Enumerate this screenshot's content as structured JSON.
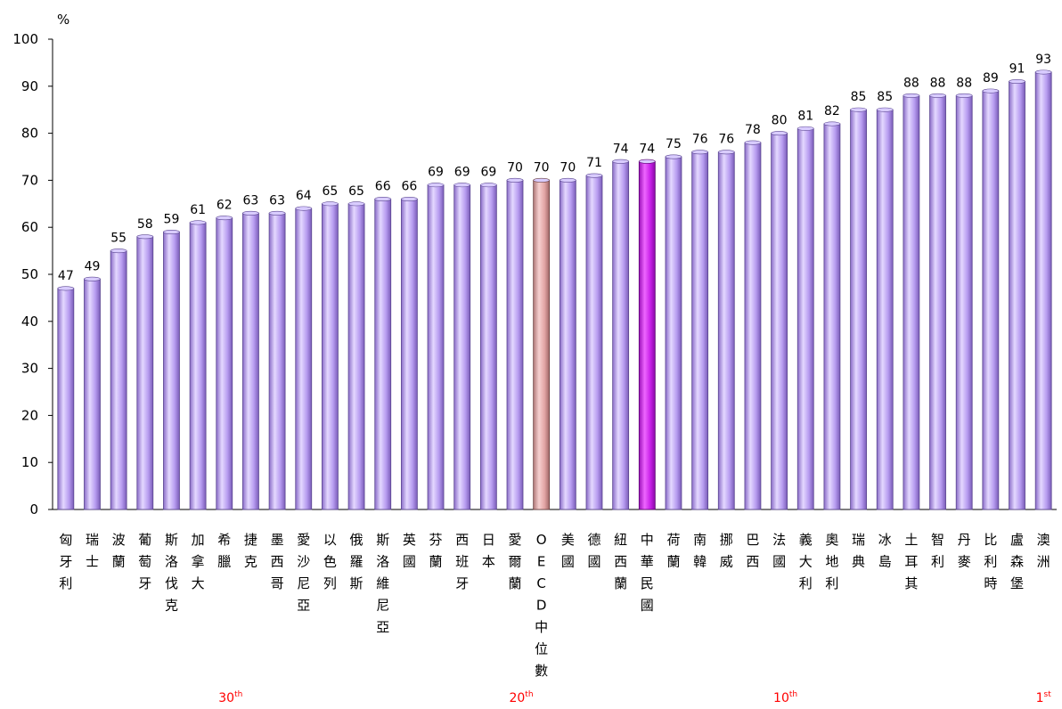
{
  "chart_data": {
    "type": "bar",
    "ylabel": "%",
    "ylim": [
      0,
      100
    ],
    "yticks": [
      0,
      10,
      20,
      30,
      40,
      50,
      60,
      70,
      80,
      90,
      100
    ],
    "grid": false,
    "legend": "none",
    "categories": [
      "匈牙利",
      "瑞士",
      "波蘭",
      "葡萄牙",
      "斯洛伐克",
      "加拿大",
      "希臘",
      "捷克",
      "墨西哥",
      "愛沙尼亞",
      "以色列",
      "俄羅斯",
      "斯洛維尼亞",
      "英國",
      "芬蘭",
      "西班牙",
      "日本",
      "愛爾蘭",
      "OECD中位數",
      "美國",
      "德國",
      "紐西蘭",
      "中華民國",
      "荷蘭",
      "南韓",
      "挪威",
      "巴西",
      "法國",
      "義大利",
      "奧地利",
      "瑞典",
      "冰島",
      "土耳其",
      "智利",
      "丹麥",
      "比利時",
      "盧森堡",
      "澳洲"
    ],
    "values": [
      47,
      49,
      55,
      58,
      59,
      61,
      62,
      63,
      63,
      64,
      65,
      65,
      66,
      66,
      69,
      69,
      69,
      70,
      70,
      70,
      71,
      74,
      74,
      75,
      76,
      76,
      78,
      80,
      81,
      82,
      85,
      85,
      88,
      88,
      88,
      89,
      91,
      93
    ],
    "highlight": {
      "中華民國": "#cc22ee",
      "OECD中位數": "#e8a8a8"
    },
    "bar_color": "#b89cf0",
    "rank_markers": [
      {
        "category": "希臘",
        "rank": "30",
        "suffix": "th"
      },
      {
        "category": "愛爾蘭",
        "rank": "20",
        "suffix": "th"
      },
      {
        "category": "法國",
        "rank": "10",
        "suffix": "th"
      },
      {
        "category": "澳洲",
        "rank": "1",
        "suffix": "st"
      }
    ],
    "rank_color": "#ff0000"
  }
}
